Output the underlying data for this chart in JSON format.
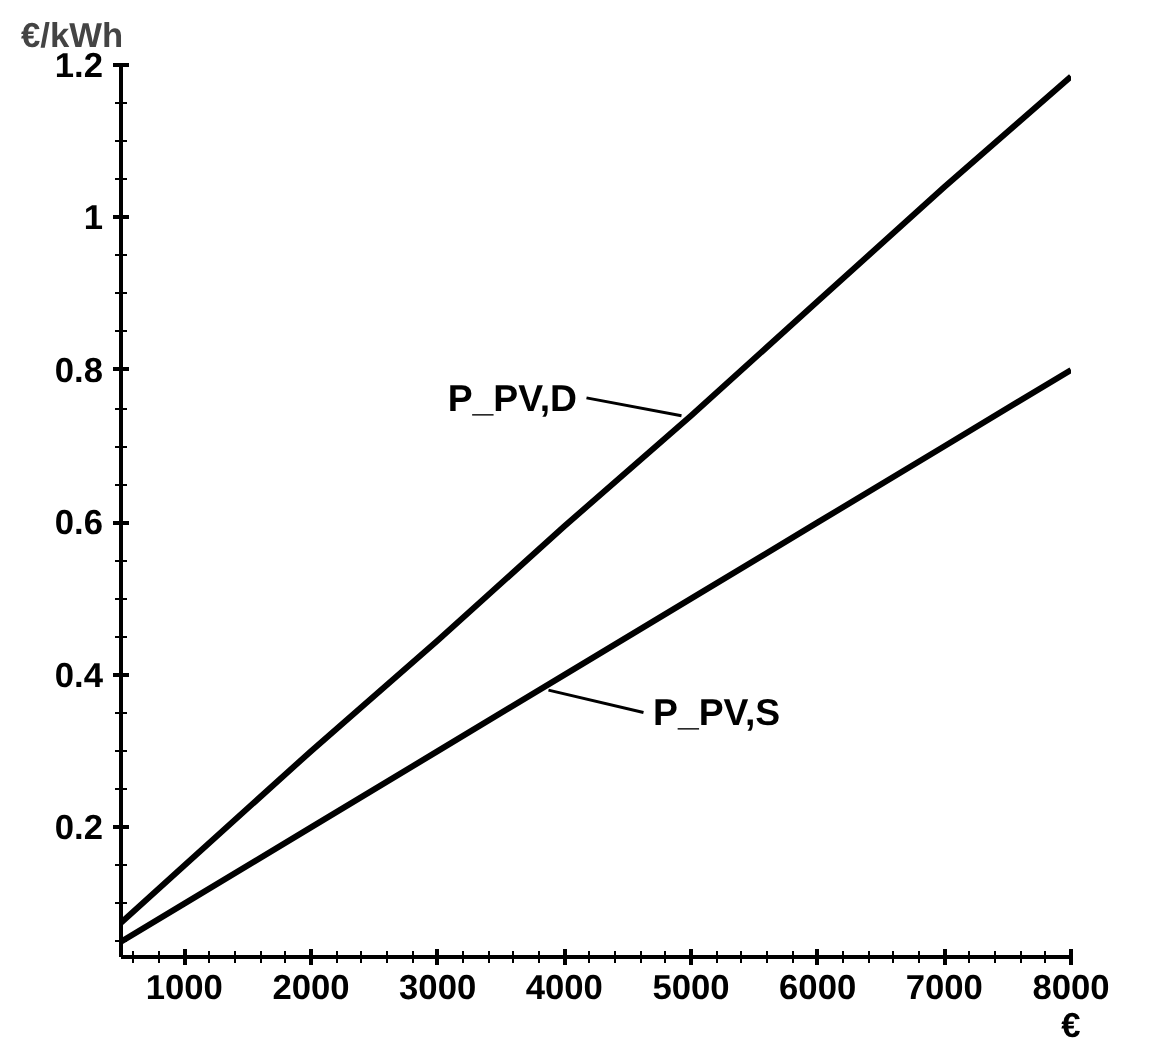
{
  "chart_data": {
    "type": "line",
    "ylabel": "€/kWh",
    "xlabel": "€",
    "xlim": [
      500,
      8000
    ],
    "ylim": [
      0.03,
      1.2
    ],
    "xticks": [
      1000,
      2000,
      3000,
      4000,
      5000,
      6000,
      7000,
      8000
    ],
    "yticks": [
      0.2,
      0.4,
      0.6,
      0.8,
      1,
      1.2
    ],
    "x": [
      500,
      1000,
      2000,
      3000,
      4000,
      5000,
      6000,
      7000,
      8000
    ],
    "series": [
      {
        "name": "P_PV,D",
        "color": "#000000",
        "values": [
          0.075,
          0.15,
          0.3,
          0.445,
          0.595,
          0.74,
          0.89,
          1.04,
          1.185
        ]
      },
      {
        "name": "P_PV,S",
        "color": "#000000",
        "values": [
          0.05,
          0.1,
          0.2,
          0.3,
          0.4,
          0.5,
          0.6,
          0.7,
          0.8
        ]
      }
    ],
    "grid": false,
    "marker": "none",
    "line_style": "solid"
  }
}
